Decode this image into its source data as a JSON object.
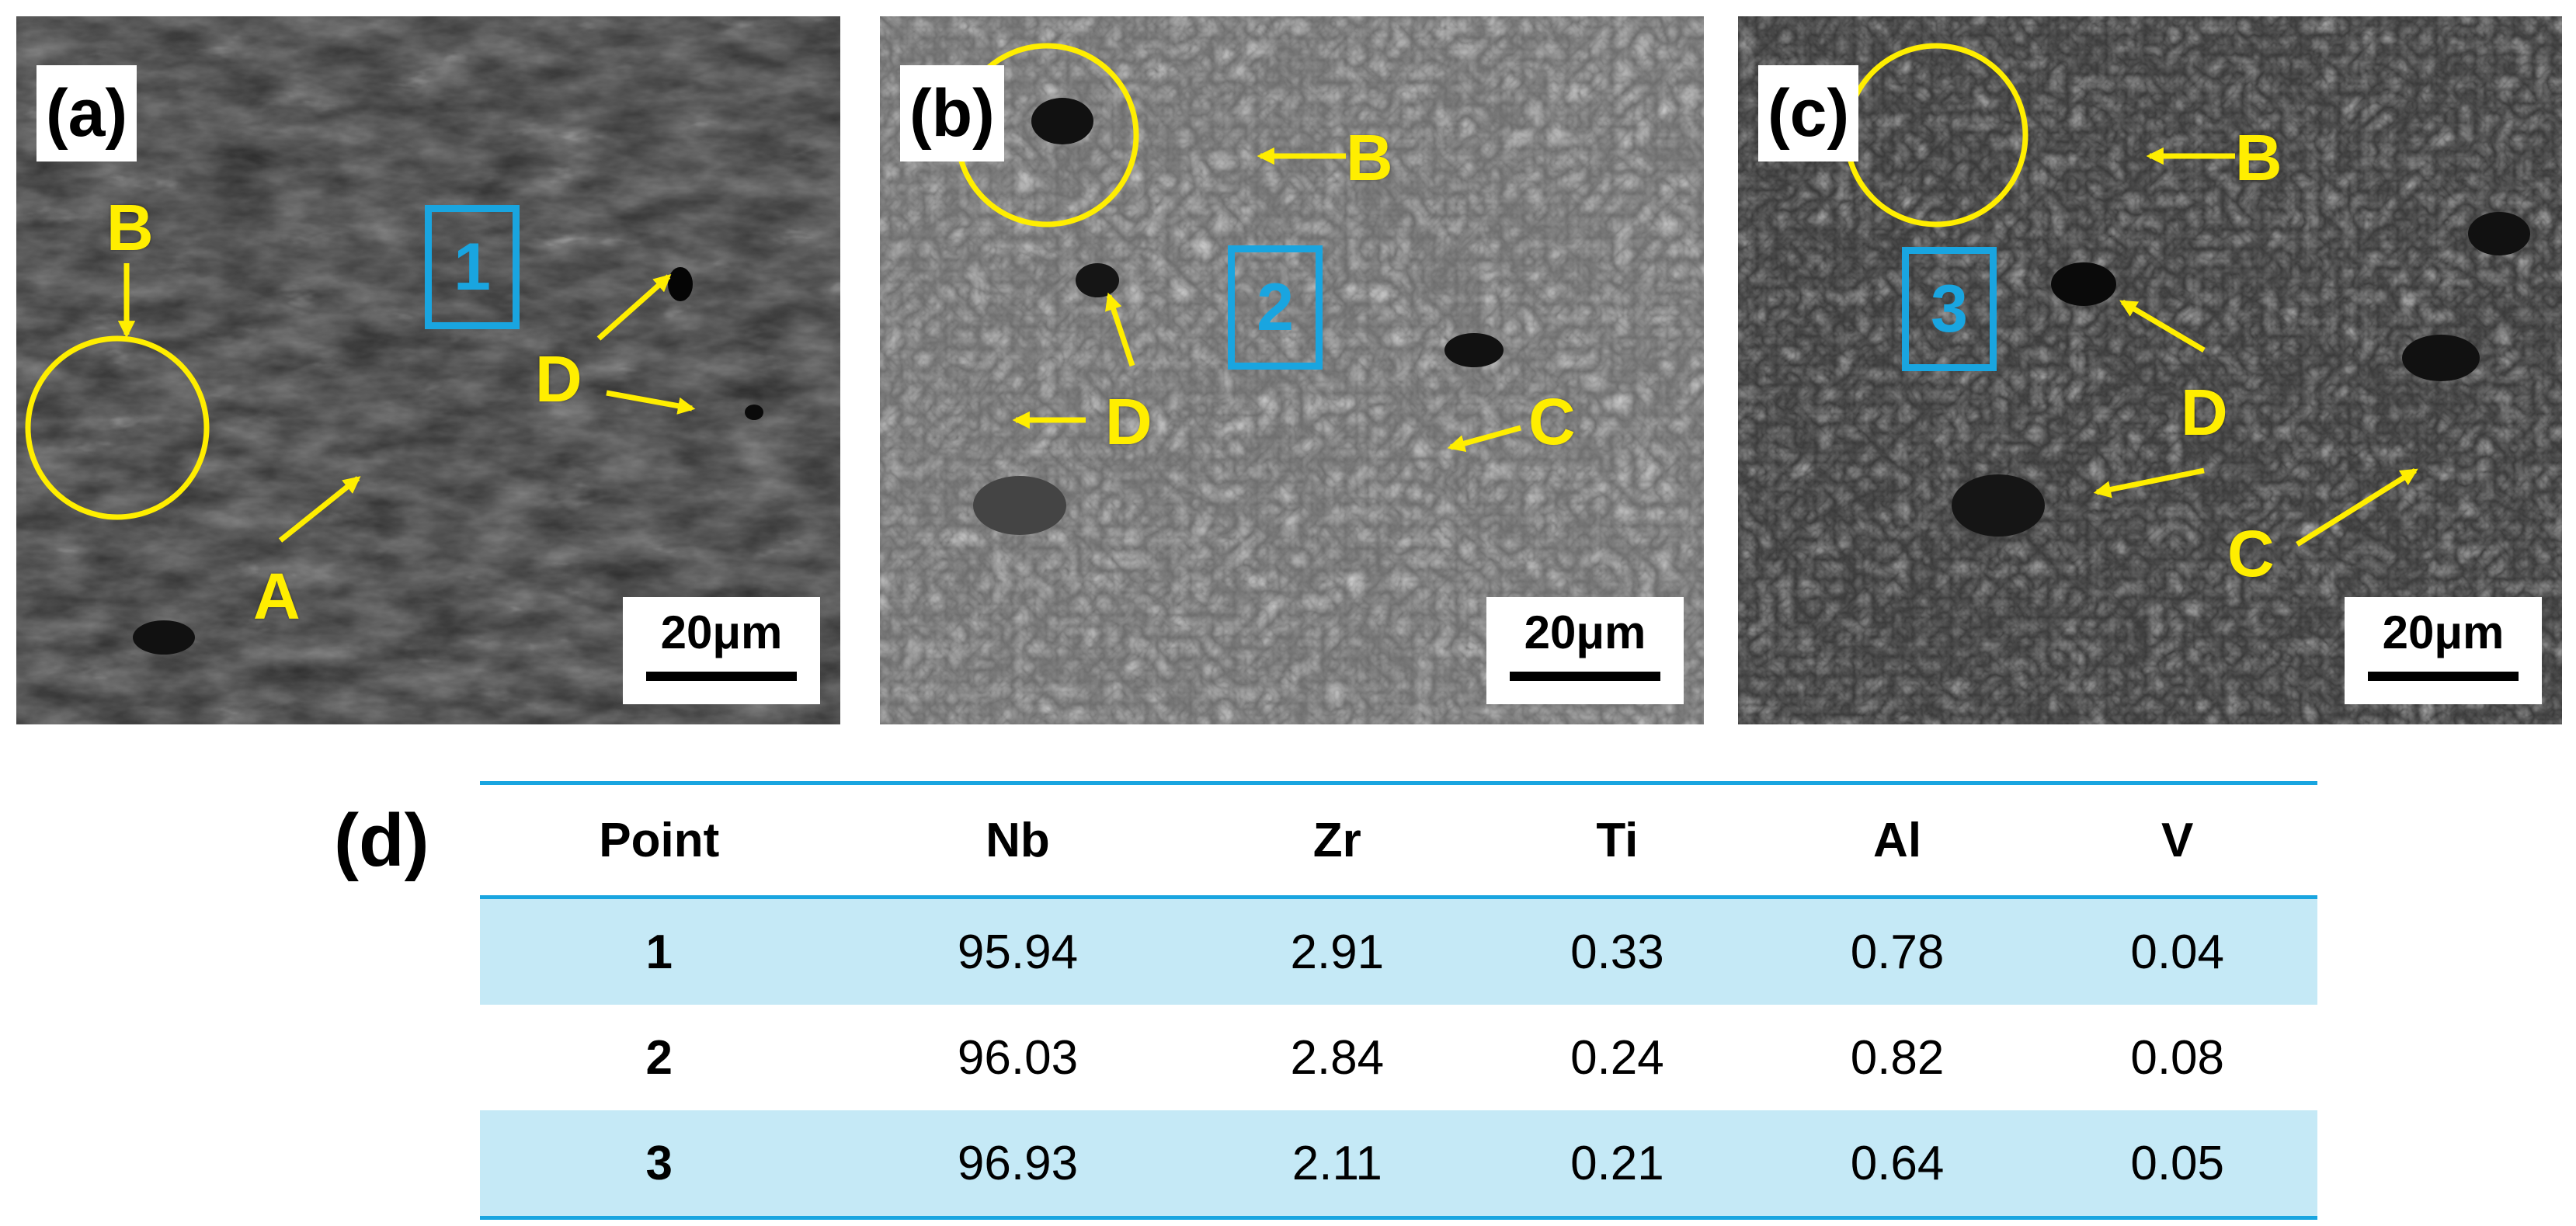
{
  "panels": [
    {
      "label": "(a)",
      "scale_bar": "20μm",
      "point_box": "1",
      "annotations": [
        "A",
        "B",
        "D"
      ]
    },
    {
      "label": "(b)",
      "scale_bar": "20μm",
      "point_box": "2",
      "annotations": [
        "B",
        "D",
        "C"
      ]
    },
    {
      "label": "(c)",
      "scale_bar": "20μm",
      "point_box": "3",
      "annotations": [
        "B",
        "D",
        "C"
      ]
    }
  ],
  "table": {
    "label": "(d)",
    "headers": [
      "Point",
      "Nb",
      "Zr",
      "Ti",
      "Al",
      "V"
    ],
    "rows": [
      [
        "1",
        "95.94",
        "2.91",
        "0.33",
        "0.78",
        "0.04"
      ],
      [
        "2",
        "96.03",
        "2.84",
        "0.24",
        "0.82",
        "0.08"
      ],
      [
        "3",
        "96.93",
        "2.11",
        "0.21",
        "0.64",
        "0.05"
      ]
    ]
  },
  "colors": {
    "annotation": "#ffee00",
    "point_box": "#19a5e0",
    "table_rule": "#19a5e0",
    "row_shade": "#c5e9f6"
  }
}
